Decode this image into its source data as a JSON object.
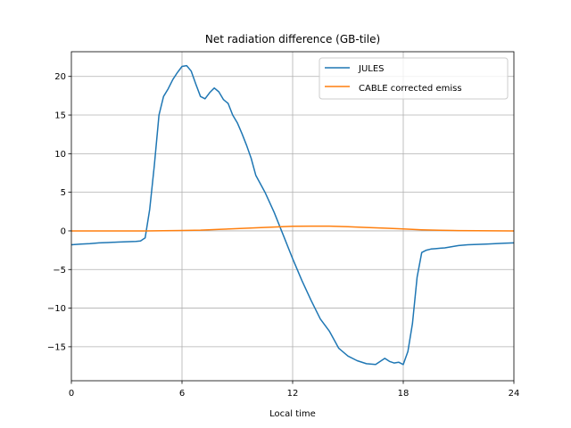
{
  "chart_data": {
    "type": "line",
    "title": "Net radiation difference (GB-tile)",
    "xlabel": "Local time",
    "ylabel": "",
    "xlim": [
      0,
      24
    ],
    "ylim": [
      -19.4,
      23.2
    ],
    "xticks": [
      0,
      6,
      12,
      18,
      24
    ],
    "yticks": [
      -15,
      -10,
      -5,
      0,
      5,
      10,
      15,
      20
    ],
    "grid": "x-and-y",
    "legend_position": "upper right",
    "series": [
      {
        "name": "JULES",
        "color": "#1f77b4",
        "x": [
          0,
          0.5,
          1,
          1.5,
          2,
          2.5,
          3,
          3.5,
          3.75,
          4,
          4.25,
          4.5,
          4.75,
          5,
          5.25,
          5.5,
          5.75,
          6,
          6.25,
          6.5,
          6.75,
          7,
          7.25,
          7.5,
          7.75,
          8,
          8.25,
          8.5,
          8.75,
          9,
          9.25,
          9.5,
          9.75,
          10,
          10.5,
          11,
          11.5,
          12,
          12.5,
          13,
          13.5,
          14,
          14.5,
          15,
          15.5,
          16,
          16.5,
          17,
          17.25,
          17.5,
          17.75,
          18,
          18.25,
          18.5,
          18.75,
          19,
          19.25,
          19.5,
          19.75,
          20,
          20.25,
          20.5,
          20.75,
          21,
          21.5,
          22,
          22.5,
          23,
          23.5,
          24
        ],
        "y": [
          -1.8,
          -1.7,
          -1.65,
          -1.55,
          -1.5,
          -1.45,
          -1.4,
          -1.35,
          -1.3,
          -0.9,
          2.8,
          8.5,
          15.0,
          17.4,
          18.4,
          19.6,
          20.5,
          21.3,
          21.4,
          20.7,
          19.0,
          17.4,
          17.1,
          17.9,
          18.5,
          18.0,
          17.0,
          16.5,
          15.0,
          14.0,
          12.6,
          11.1,
          9.4,
          7.2,
          5.0,
          2.4,
          -0.6,
          -3.6,
          -6.4,
          -9.0,
          -11.4,
          -13.0,
          -15.2,
          -16.2,
          -16.8,
          -17.2,
          -17.3,
          -16.5,
          -16.9,
          -17.1,
          -17.0,
          -17.3,
          -15.6,
          -12.0,
          -6.0,
          -2.8,
          -2.5,
          -2.35,
          -2.3,
          -2.25,
          -2.2,
          -2.1,
          -2.0,
          -1.9,
          -1.8,
          -1.75,
          -1.7,
          -1.65,
          -1.6,
          -1.55
        ],
        "x_note": ""
      },
      {
        "name": "CABLE corrected emiss",
        "color": "#ff7f0e",
        "x": [
          0,
          2,
          4,
          6,
          7,
          8,
          9,
          10,
          11,
          12,
          13,
          14,
          15,
          16,
          17,
          18,
          19,
          20,
          21,
          22,
          23,
          24
        ],
        "y": [
          0.0,
          0.0,
          0.0,
          0.05,
          0.1,
          0.2,
          0.3,
          0.4,
          0.5,
          0.6,
          0.62,
          0.62,
          0.55,
          0.45,
          0.35,
          0.25,
          0.15,
          0.08,
          0.04,
          0.02,
          0.01,
          0.0
        ]
      }
    ]
  }
}
